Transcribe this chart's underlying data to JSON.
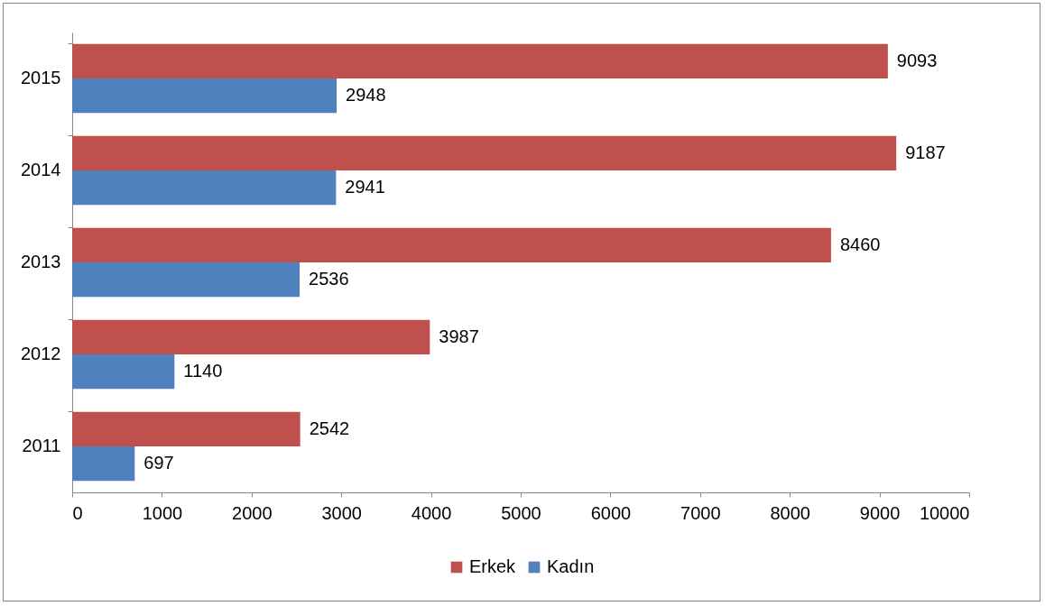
{
  "chart_data": {
    "type": "bar",
    "orientation": "horizontal",
    "categories": [
      "2015",
      "2014",
      "2013",
      "2012",
      "2011"
    ],
    "series": [
      {
        "name": "Erkek",
        "color": "#c0504d",
        "values": [
          9093,
          9187,
          8460,
          3987,
          2542
        ]
      },
      {
        "name": "Kadın",
        "color": "#4f81bd",
        "values": [
          2948,
          2941,
          2536,
          1140,
          697
        ]
      }
    ],
    "xlim": [
      0,
      10000
    ],
    "xticks": [
      0,
      1000,
      2000,
      3000,
      4000,
      5000,
      6000,
      7000,
      8000,
      9000,
      10000
    ],
    "data_labels": true,
    "legend": "bottom"
  }
}
